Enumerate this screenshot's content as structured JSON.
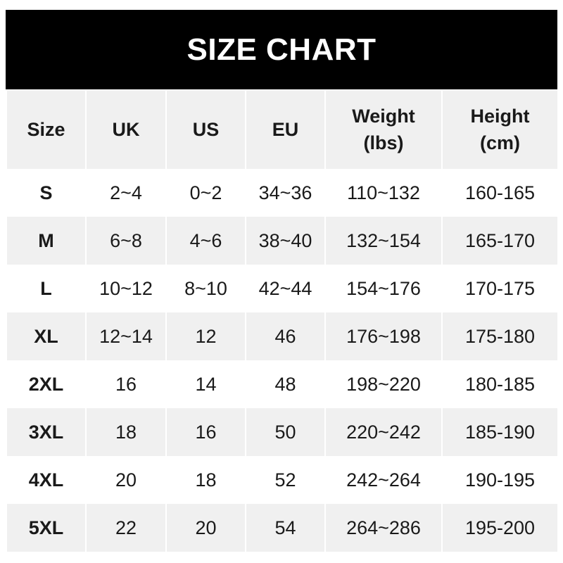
{
  "title": "SIZE CHART",
  "headers": [
    {
      "line1": "Size",
      "line2": ""
    },
    {
      "line1": "UK",
      "line2": ""
    },
    {
      "line1": "US",
      "line2": ""
    },
    {
      "line1": "EU",
      "line2": ""
    },
    {
      "line1": "Weight",
      "line2": "(lbs)"
    },
    {
      "line1": "Height",
      "line2": "(cm)"
    }
  ],
  "rows": [
    [
      "S",
      "2~4",
      "0~2",
      "34~36",
      "110~132",
      "160-165"
    ],
    [
      "M",
      "6~8",
      "4~6",
      "38~40",
      "132~154",
      "165-170"
    ],
    [
      "L",
      "10~12",
      "8~10",
      "42~44",
      "154~176",
      "170-175"
    ],
    [
      "XL",
      "12~14",
      "12",
      "46",
      "176~198",
      "175-180"
    ],
    [
      "2XL",
      "16",
      "14",
      "48",
      "198~220",
      "180-185"
    ],
    [
      "3XL",
      "18",
      "16",
      "50",
      "220~242",
      "185-190"
    ],
    [
      "4XL",
      "20",
      "18",
      "52",
      "242~264",
      "190-195"
    ],
    [
      "5XL",
      "22",
      "20",
      "54",
      "264~286",
      "195-200"
    ]
  ]
}
